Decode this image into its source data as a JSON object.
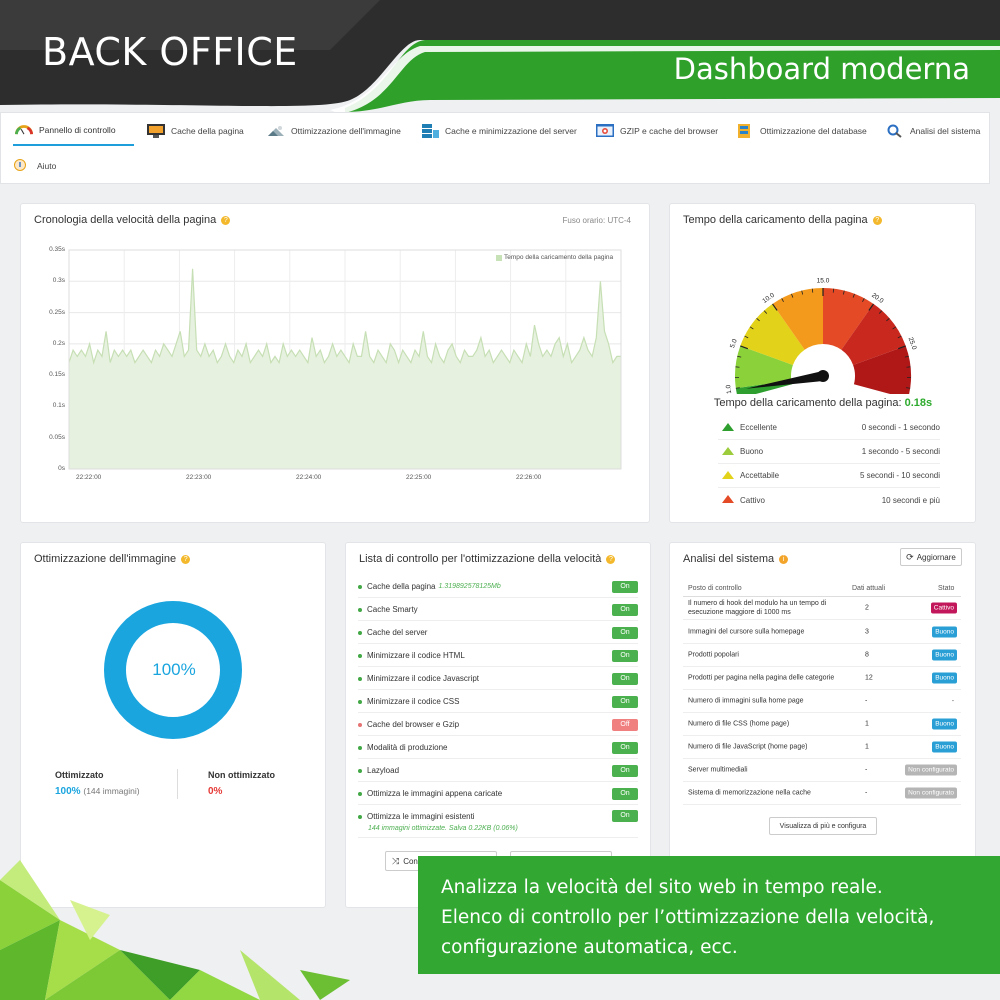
{
  "banner": {
    "title": "BACK OFFICE",
    "subtitle": "Dashboard moderna"
  },
  "tabs": [
    {
      "label": "Pannello di controllo",
      "icon": "gauge-icon"
    },
    {
      "label": "Cache della pagina",
      "icon": "monitor-icon"
    },
    {
      "label": "Ottimizzazione dell'immagine",
      "icon": "image-icon"
    },
    {
      "label": "Cache e minimizzazione del server",
      "icon": "server-icon"
    },
    {
      "label": "GZIP e cache del browser",
      "icon": "browser-icon"
    },
    {
      "label": "Ottimizzazione del database",
      "icon": "database-icon"
    },
    {
      "label": "Analisi del sistema",
      "icon": "magnifier-icon"
    },
    {
      "label": "Aiuto",
      "icon": "help-icon"
    }
  ],
  "speed_card": {
    "title": "Cronologia della velocità della pagina",
    "timezone": "Fuso orario: UTC-4",
    "legend": "Tempo della caricamento della pagina"
  },
  "chart_data": {
    "type": "area",
    "title": "Cronologia della velocità della pagina",
    "series": [
      {
        "name": "Tempo della caricamento della pagina",
        "values": [
          0.17,
          0.19,
          0.18,
          0.19,
          0.18,
          0.2,
          0.17,
          0.19,
          0.18,
          0.22,
          0.17,
          0.19,
          0.18,
          0.19,
          0.18,
          0.19,
          0.17,
          0.18,
          0.19,
          0.18,
          0.17,
          0.19,
          0.18,
          0.2,
          0.19,
          0.18,
          0.2,
          0.22,
          0.18,
          0.19,
          0.32,
          0.19,
          0.18,
          0.2,
          0.18,
          0.19,
          0.17,
          0.18,
          0.2,
          0.18,
          0.17,
          0.19,
          0.18,
          0.2,
          0.17,
          0.18,
          0.19,
          0.18,
          0.2,
          0.17,
          0.18,
          0.17,
          0.2,
          0.18,
          0.19,
          0.18,
          0.19,
          0.18,
          0.17,
          0.21,
          0.18,
          0.19,
          0.17,
          0.18,
          0.2,
          0.18,
          0.19,
          0.18,
          0.17,
          0.2,
          0.18,
          0.18,
          0.22,
          0.18,
          0.17,
          0.19,
          0.18,
          0.17,
          0.2,
          0.19,
          0.17,
          0.19,
          0.18,
          0.17,
          0.19,
          0.18,
          0.22,
          0.18,
          0.17,
          0.2,
          0.18,
          0.17,
          0.19,
          0.2,
          0.18,
          0.17,
          0.19,
          0.18,
          0.18,
          0.19,
          0.21,
          0.18,
          0.19,
          0.17,
          0.18,
          0.19,
          0.18,
          0.17,
          0.19,
          0.18,
          0.17,
          0.2,
          0.18,
          0.23,
          0.2,
          0.18,
          0.19,
          0.18,
          0.2,
          0.21,
          0.18,
          0.2,
          0.17,
          0.18,
          0.19,
          0.21,
          0.19,
          0.18,
          0.21,
          0.3,
          0.22,
          0.2,
          0.17,
          0.18,
          0.18
        ]
      }
    ],
    "yticks": [
      "0s",
      "0.05s",
      "0.1s",
      "0.15s",
      "0.2s",
      "0.25s",
      "0.3s",
      "0.35s"
    ],
    "xticks": [
      "22:22:00",
      "22:23:00",
      "22:24:00",
      "22:25:00",
      "22:26:00"
    ],
    "ylim": [
      0,
      0.35
    ]
  },
  "load_card": {
    "title": "Tempo della caricamento della pagina",
    "gauge_ticks": [
      "0.0",
      "1.0",
      "5.0",
      "10.0",
      "15.0",
      "20.0",
      "25.0",
      "30.0"
    ],
    "result_label": "Tempo della caricamento della pagina:",
    "result_value": "0.18s",
    "gauge_value_seconds": 0.18,
    "scale": [
      {
        "name": "Eccellente",
        "range": "0 secondi - 1 secondo",
        "color": "#2e9e2e"
      },
      {
        "name": "Buono",
        "range": "1 secondo - 5 secondi",
        "color": "#9ccc3c"
      },
      {
        "name": "Accettabile",
        "range": "5 secondi - 10 secondi",
        "color": "#e3d21a"
      },
      {
        "name": "Cattivo",
        "range": "10 secondi e più",
        "color": "#e34a25"
      }
    ]
  },
  "image_card": {
    "title": "Ottimizzazione dell'immagine",
    "percent": "100%",
    "optimized_label": "Ottimizzato",
    "optimized_value": "100%",
    "optimized_count": "(144 immagini)",
    "not_optimized_label": "Non ottimizzato",
    "not_optimized_value": "0%"
  },
  "checklist_card": {
    "title": "Lista di controllo per l'ottimizzazione della velocità",
    "items": [
      {
        "label": "Cache della pagina",
        "extra": "1.319892578125Mb",
        "state": "On"
      },
      {
        "label": "Cache Smarty",
        "state": "On"
      },
      {
        "label": "Cache del server",
        "state": "On"
      },
      {
        "label": "Minimizzare il codice HTML",
        "state": "On"
      },
      {
        "label": "Minimizzare il codice Javascript",
        "state": "On"
      },
      {
        "label": "Minimizzare il codice CSS",
        "state": "On"
      },
      {
        "label": "Cache del browser e Gzip",
        "state": "Off"
      },
      {
        "label": "Modalità di produzione",
        "state": "On"
      },
      {
        "label": "Lazyload",
        "state": "On"
      },
      {
        "label": "Ottimizza le immagini appena caricate",
        "state": "On"
      },
      {
        "label": "Ottimizza le immagini esistenti",
        "state": "On"
      }
    ],
    "existing_note": "144 immagini ottimizzate. Salva 0.22KB (0.06%)",
    "button_label": "Confi"
  },
  "system_card": {
    "title": "Analisi del sistema",
    "refresh_label": "Aggiornare",
    "columns": [
      "Posto di controllo",
      "Dati attuali",
      "Stato"
    ],
    "rows": [
      {
        "name": "Il numero di hook del modulo ha un tempo di esecuzione maggiore di 1000 ms",
        "value": "2",
        "status": "Cattivo",
        "kind": "cattivo"
      },
      {
        "name": "Immagini del cursore sulla homepage",
        "value": "3",
        "status": "Buono",
        "kind": "buono"
      },
      {
        "name": "Prodotti popolari",
        "value": "8",
        "status": "Buono",
        "kind": "buono"
      },
      {
        "name": "Prodotti per pagina nella pagina delle categorie",
        "value": "12",
        "status": "Buono",
        "kind": "buono"
      },
      {
        "name": "Numero di immagini sulla home page",
        "value": "-",
        "status": "-",
        "kind": "dash"
      },
      {
        "name": "Numero di file CSS (home page)",
        "value": "1",
        "status": "Buono",
        "kind": "buono"
      },
      {
        "name": "Numero di file JavaScript (home page)",
        "value": "1",
        "status": "Buono",
        "kind": "buono"
      },
      {
        "name": "Server multimediali",
        "value": "-",
        "status": "Non configurato",
        "kind": "nonc"
      },
      {
        "name": "Sistema di memorizzazione nella cache",
        "value": "-",
        "status": "Non configurato",
        "kind": "nonc"
      }
    ],
    "more_label": "Visualizza di più e configura"
  },
  "overlay": {
    "lines": [
      "Analizza la velocità del sito web in tempo reale.",
      "Elenco di controllo per l’ottimizzazione della velocità,",
      "configurazione automatica, ecc."
    ]
  }
}
